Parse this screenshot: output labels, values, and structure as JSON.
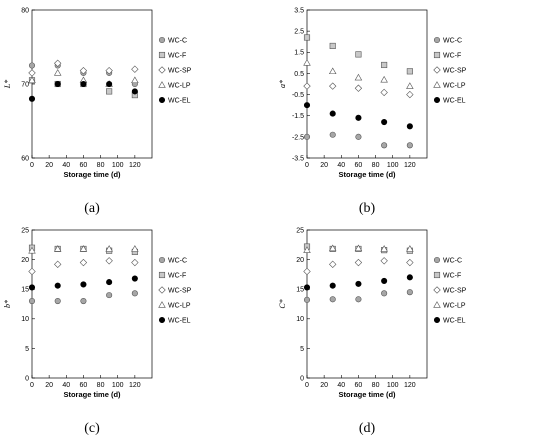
{
  "legend": [
    {
      "name": "WC-C",
      "marker": "circle-gray"
    },
    {
      "name": "WC-F",
      "marker": "square-gray"
    },
    {
      "name": "WC-SP",
      "marker": "diamond-white"
    },
    {
      "name": "WC-LP",
      "marker": "triangle-white"
    },
    {
      "name": "WC-EL",
      "marker": "circle-black"
    }
  ],
  "chart_data": [
    {
      "type": "scatter",
      "panel": "(a)",
      "ylabel": "L*",
      "xlabel": "Storage time (d)",
      "xlim": [
        0,
        140
      ],
      "ylim": [
        60,
        80
      ],
      "xticks": [
        0,
        20,
        40,
        60,
        80,
        100,
        120
      ],
      "yticks": [
        60,
        70,
        80
      ],
      "x": [
        0,
        30,
        60,
        90,
        120
      ],
      "series": [
        {
          "name": "WC-C",
          "values": [
            72.5,
            72.5,
            71.5,
            71.5,
            70.0
          ]
        },
        {
          "name": "WC-F",
          "values": [
            70.5,
            70.0,
            70.0,
            69.0,
            68.5
          ]
        },
        {
          "name": "WC-SP",
          "values": [
            71.5,
            72.8,
            71.8,
            71.8,
            72.0
          ]
        },
        {
          "name": "WC-LP",
          "values": [
            70.5,
            71.5,
            70.5,
            70.0,
            70.5
          ]
        },
        {
          "name": "WC-EL",
          "values": [
            68.0,
            70.0,
            70.0,
            70.0,
            69.0
          ]
        }
      ]
    },
    {
      "type": "scatter",
      "panel": "(b)",
      "ylabel": "a*",
      "xlabel": "Storage time (d)",
      "xlim": [
        0,
        140
      ],
      "ylim": [
        -3.5,
        3.5
      ],
      "xticks": [
        0,
        20,
        40,
        60,
        80,
        100,
        120
      ],
      "yticks": [
        -3.5,
        -2.5,
        -1.5,
        -0.5,
        0.5,
        1.5,
        2.5,
        3.5
      ],
      "x": [
        0,
        30,
        60,
        90,
        120
      ],
      "series": [
        {
          "name": "WC-C",
          "values": [
            -2.5,
            -2.4,
            -2.5,
            -2.9,
            -2.9
          ]
        },
        {
          "name": "WC-F",
          "values": [
            2.2,
            1.8,
            1.4,
            0.9,
            0.6
          ]
        },
        {
          "name": "WC-SP",
          "values": [
            -0.1,
            -0.1,
            -0.2,
            -0.4,
            -0.5
          ]
        },
        {
          "name": "WC-LP",
          "values": [
            1.0,
            0.6,
            0.3,
            0.2,
            -0.1
          ]
        },
        {
          "name": "WC-EL",
          "values": [
            -1.0,
            -1.4,
            -1.6,
            -1.8,
            -2.0
          ]
        }
      ]
    },
    {
      "type": "scatter",
      "panel": "(c)",
      "ylabel": "b*",
      "xlabel": "Storage time (d)",
      "xlim": [
        0,
        140
      ],
      "ylim": [
        0,
        25
      ],
      "xticks": [
        0,
        20,
        40,
        60,
        80,
        100,
        120
      ],
      "yticks": [
        0,
        5,
        10,
        15,
        20,
        25
      ],
      "x": [
        0,
        30,
        60,
        90,
        120
      ],
      "series": [
        {
          "name": "WC-C",
          "values": [
            13.0,
            13.0,
            13.0,
            14.0,
            14.3
          ]
        },
        {
          "name": "WC-F",
          "values": [
            22.0,
            21.8,
            21.8,
            21.5,
            21.3
          ]
        },
        {
          "name": "WC-SP",
          "values": [
            18.0,
            19.2,
            19.5,
            19.8,
            19.5
          ]
        },
        {
          "name": "WC-LP",
          "values": [
            21.5,
            21.8,
            21.8,
            21.8,
            21.8
          ]
        },
        {
          "name": "WC-EL",
          "values": [
            15.3,
            15.6,
            15.8,
            16.2,
            16.8
          ]
        }
      ]
    },
    {
      "type": "scatter",
      "panel": "(d)",
      "ylabel": "C*",
      "xlabel": "Storage time (d)",
      "xlim": [
        0,
        140
      ],
      "ylim": [
        0,
        25
      ],
      "xticks": [
        0,
        20,
        40,
        60,
        80,
        100,
        120
      ],
      "yticks": [
        0,
        5,
        10,
        15,
        20,
        25
      ],
      "x": [
        0,
        30,
        60,
        90,
        120
      ],
      "series": [
        {
          "name": "WC-C",
          "values": [
            13.2,
            13.3,
            13.3,
            14.3,
            14.5
          ]
        },
        {
          "name": "WC-F",
          "values": [
            22.2,
            21.8,
            21.8,
            21.6,
            21.5
          ]
        },
        {
          "name": "WC-SP",
          "values": [
            18.0,
            19.2,
            19.5,
            19.8,
            19.5
          ]
        },
        {
          "name": "WC-LP",
          "values": [
            21.6,
            21.9,
            21.9,
            21.8,
            21.8
          ]
        },
        {
          "name": "WC-EL",
          "values": [
            15.3,
            15.6,
            15.9,
            16.4,
            17.0
          ]
        }
      ]
    }
  ]
}
